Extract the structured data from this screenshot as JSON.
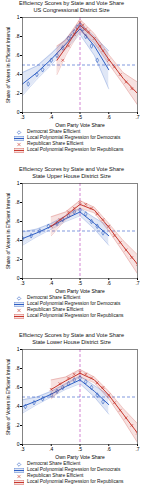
{
  "chart_data": [
    {
      "type": "scatter",
      "title": "Efficiency Scores by State and Vote Share",
      "subtitle": "US Congressional District Size",
      "x_label": "Own Party Vote Share",
      "y_label": "Share of Voters in Efficient Interval",
      "xlim": [
        0.3,
        0.7
      ],
      "ylim": [
        0,
        1
      ],
      "xticks": [
        {
          "value": 0.3,
          "label": ".3"
        },
        {
          "value": 0.4,
          "label": ".4"
        },
        {
          "value": 0.5,
          "label": ".5"
        },
        {
          "value": 0.6,
          "label": ".6"
        },
        {
          "value": 0.7,
          "label": ".7"
        }
      ],
      "yticks": [
        0,
        {
          "value": 0.2,
          "label": ".2"
        },
        {
          "value": 0.4,
          "label": ".4"
        },
        {
          "value": 0.6,
          "label": ".6"
        },
        {
          "value": 0.8,
          "label": ".8"
        },
        1
      ],
      "grid": false,
      "reference_lines": [
        {
          "axis": "x",
          "value": 0.5,
          "color": "#c050c0",
          "line_style": "dashed"
        },
        {
          "axis": "y",
          "value": 0.5,
          "color": "#4a6fd0",
          "line_style": "dashed"
        }
      ],
      "series": [
        {
          "name": "Democrat Share Efficient",
          "type": "scatter",
          "color": "#2f5fc4",
          "marker": "diamond",
          "x": [
            0.32,
            0.35,
            0.37,
            0.4,
            0.42,
            0.44,
            0.46,
            0.47,
            0.48,
            0.49,
            0.5,
            0.51,
            0.52,
            0.54,
            0.56
          ],
          "values": [
            0.3,
            0.4,
            0.45,
            0.55,
            0.6,
            0.68,
            0.78,
            0.8,
            0.85,
            0.9,
            0.92,
            0.88,
            0.8,
            0.7,
            0.55
          ]
        },
        {
          "name": "Local Polynomial Regression for Democrats",
          "type": "line",
          "color": "#2f5fc4",
          "line_style": "solid",
          "x": [
            0.3,
            0.35,
            0.4,
            0.45,
            0.5,
            0.55,
            0.6
          ],
          "values": [
            0.3,
            0.42,
            0.56,
            0.72,
            0.88,
            0.7,
            0.45
          ],
          "ci_lower": [
            0.18,
            0.35,
            0.5,
            0.67,
            0.82,
            0.6,
            0.25
          ],
          "ci_upper": [
            0.42,
            0.49,
            0.62,
            0.77,
            0.94,
            0.8,
            0.65
          ]
        },
        {
          "name": "Republican Share Efficient",
          "type": "scatter",
          "color": "#c8372d",
          "marker": "times",
          "x": [
            0.44,
            0.46,
            0.48,
            0.49,
            0.5,
            0.51,
            0.52,
            0.53,
            0.55,
            0.57,
            0.58,
            0.6,
            0.62,
            0.64,
            0.66,
            0.68
          ],
          "values": [
            0.55,
            0.7,
            0.82,
            0.88,
            0.95,
            0.92,
            0.88,
            0.85,
            0.78,
            0.7,
            0.65,
            0.55,
            0.48,
            0.4,
            0.32,
            0.25
          ]
        },
        {
          "name": "Local Polynomial Regression for Republicans",
          "type": "line",
          "color": "#c8372d",
          "line_style": "solid",
          "x": [
            0.42,
            0.45,
            0.5,
            0.55,
            0.6,
            0.65,
            0.7
          ],
          "values": [
            0.55,
            0.68,
            0.92,
            0.78,
            0.56,
            0.36,
            0.2
          ],
          "ci_lower": [
            0.4,
            0.6,
            0.86,
            0.73,
            0.51,
            0.3,
            0.08
          ],
          "ci_upper": [
            0.7,
            0.76,
            0.98,
            0.83,
            0.61,
            0.42,
            0.32
          ]
        }
      ]
    },
    {
      "type": "scatter",
      "title": "Efficiency Scores by State and Vote Share",
      "subtitle": "State Upper House District Size",
      "x_label": "Own Party Vote Share",
      "y_label": "Share of Voters in Efficient Interval",
      "xlim": [
        0.3,
        0.7
      ],
      "ylim": [
        0,
        1
      ],
      "xticks": [
        {
          "value": 0.3,
          "label": ".3"
        },
        {
          "value": 0.4,
          "label": ".4"
        },
        {
          "value": 0.5,
          "label": ".5"
        },
        {
          "value": 0.6,
          "label": ".6"
        },
        {
          "value": 0.7,
          "label": ".7"
        }
      ],
      "yticks": [
        0,
        {
          "value": 0.2,
          "label": ".2"
        },
        {
          "value": 0.4,
          "label": ".4"
        },
        {
          "value": 0.6,
          "label": ".6"
        },
        {
          "value": 0.8,
          "label": ".8"
        },
        1
      ],
      "grid": false,
      "reference_lines": [
        {
          "axis": "x",
          "value": 0.5,
          "color": "#c050c0",
          "line_style": "dashed"
        },
        {
          "axis": "y",
          "value": 0.5,
          "color": "#4a6fd0",
          "line_style": "dashed"
        }
      ],
      "series": [
        {
          "name": "Democrat Share Efficient",
          "type": "scatter",
          "color": "#2f5fc4",
          "marker": "diamond",
          "x": [
            0.3,
            0.33,
            0.36,
            0.39,
            0.42,
            0.44,
            0.46,
            0.48,
            0.5,
            0.52,
            0.54,
            0.56,
            0.58
          ],
          "values": [
            0.42,
            0.45,
            0.5,
            0.55,
            0.58,
            0.62,
            0.66,
            0.7,
            0.72,
            0.68,
            0.6,
            0.55,
            0.48
          ]
        },
        {
          "name": "Local Polynomial Regression for Democrats",
          "type": "line",
          "color": "#2f5fc4",
          "line_style": "solid",
          "x": [
            0.3,
            0.35,
            0.4,
            0.45,
            0.5,
            0.55,
            0.6
          ],
          "values": [
            0.42,
            0.48,
            0.55,
            0.63,
            0.7,
            0.58,
            0.45
          ],
          "ci_lower": [
            0.35,
            0.44,
            0.52,
            0.6,
            0.66,
            0.52,
            0.35
          ],
          "ci_upper": [
            0.49,
            0.52,
            0.58,
            0.66,
            0.74,
            0.64,
            0.55
          ]
        },
        {
          "name": "Republican Share Efficient",
          "type": "scatter",
          "color": "#c8372d",
          "marker": "times",
          "x": [
            0.4,
            0.43,
            0.46,
            0.48,
            0.5,
            0.52,
            0.54,
            0.56,
            0.58,
            0.6,
            0.62,
            0.64,
            0.66,
            0.68,
            0.7
          ],
          "values": [
            0.55,
            0.62,
            0.7,
            0.74,
            0.8,
            0.78,
            0.74,
            0.68,
            0.62,
            0.55,
            0.45,
            0.38,
            0.3,
            0.22,
            0.15
          ]
        },
        {
          "name": "Local Polynomial Regression for Republicans",
          "type": "line",
          "color": "#c8372d",
          "line_style": "solid",
          "x": [
            0.4,
            0.45,
            0.5,
            0.55,
            0.6,
            0.65,
            0.7
          ],
          "values": [
            0.55,
            0.66,
            0.78,
            0.72,
            0.54,
            0.34,
            0.15
          ],
          "ci_lower": [
            0.45,
            0.62,
            0.74,
            0.69,
            0.5,
            0.28,
            0.05
          ],
          "ci_upper": [
            0.65,
            0.7,
            0.82,
            0.75,
            0.58,
            0.4,
            0.25
          ]
        }
      ]
    },
    {
      "type": "scatter",
      "title": "Efficiency Scores by State and Vote Share",
      "subtitle": "State Lower House District Size",
      "x_label": "Own Party Vote Share",
      "y_label": "Share of Voters in Efficient Interval",
      "xlim": [
        0.3,
        0.7
      ],
      "ylim": [
        0,
        1
      ],
      "xticks": [
        {
          "value": 0.3,
          "label": ".3"
        },
        {
          "value": 0.4,
          "label": ".4"
        },
        {
          "value": 0.5,
          "label": ".5"
        },
        {
          "value": 0.6,
          "label": ".6"
        },
        {
          "value": 0.7,
          "label": ".7"
        }
      ],
      "yticks": [
        0,
        {
          "value": 0.2,
          "label": ".2"
        },
        {
          "value": 0.4,
          "label": ".4"
        },
        {
          "value": 0.6,
          "label": ".6"
        },
        {
          "value": 0.8,
          "label": ".8"
        },
        1
      ],
      "grid": false,
      "reference_lines": [
        {
          "axis": "x",
          "value": 0.5,
          "color": "#c050c0",
          "line_style": "dashed"
        },
        {
          "axis": "y",
          "value": 0.5,
          "color": "#4a6fd0",
          "line_style": "dashed"
        }
      ],
      "series": [
        {
          "name": "Democrat Share Efficient",
          "type": "scatter",
          "color": "#2f5fc4",
          "marker": "diamond",
          "x": [
            0.31,
            0.34,
            0.37,
            0.4,
            0.42,
            0.44,
            0.46,
            0.48,
            0.5,
            0.52,
            0.54,
            0.56,
            0.58
          ],
          "values": [
            0.4,
            0.44,
            0.48,
            0.52,
            0.56,
            0.6,
            0.64,
            0.68,
            0.7,
            0.66,
            0.6,
            0.52,
            0.45
          ]
        },
        {
          "name": "Local Polynomial Regression for Democrats",
          "type": "line",
          "color": "#2f5fc4",
          "line_style": "solid",
          "x": [
            0.3,
            0.35,
            0.4,
            0.45,
            0.5,
            0.55,
            0.6
          ],
          "values": [
            0.4,
            0.46,
            0.53,
            0.61,
            0.68,
            0.56,
            0.42
          ],
          "ci_lower": [
            0.33,
            0.42,
            0.5,
            0.58,
            0.64,
            0.5,
            0.32
          ],
          "ci_upper": [
            0.47,
            0.5,
            0.56,
            0.64,
            0.72,
            0.62,
            0.52
          ]
        },
        {
          "name": "Republican Share Efficient",
          "type": "scatter",
          "color": "#c8372d",
          "marker": "times",
          "x": [
            0.4,
            0.43,
            0.46,
            0.48,
            0.5,
            0.52,
            0.54,
            0.56,
            0.58,
            0.6,
            0.62,
            0.64,
            0.66,
            0.68,
            0.7
          ],
          "values": [
            0.58,
            0.64,
            0.7,
            0.74,
            0.76,
            0.74,
            0.7,
            0.65,
            0.6,
            0.52,
            0.44,
            0.36,
            0.28,
            0.2,
            0.12
          ]
        },
        {
          "name": "Local Polynomial Regression for Republicans",
          "type": "line",
          "color": "#c8372d",
          "line_style": "solid",
          "x": [
            0.4,
            0.45,
            0.5,
            0.55,
            0.6,
            0.65,
            0.7
          ],
          "values": [
            0.58,
            0.67,
            0.75,
            0.68,
            0.52,
            0.32,
            0.12
          ],
          "ci_lower": [
            0.48,
            0.63,
            0.71,
            0.65,
            0.48,
            0.26,
            0.02
          ],
          "ci_upper": [
            0.68,
            0.71,
            0.79,
            0.71,
            0.56,
            0.38,
            0.22
          ]
        }
      ]
    }
  ]
}
